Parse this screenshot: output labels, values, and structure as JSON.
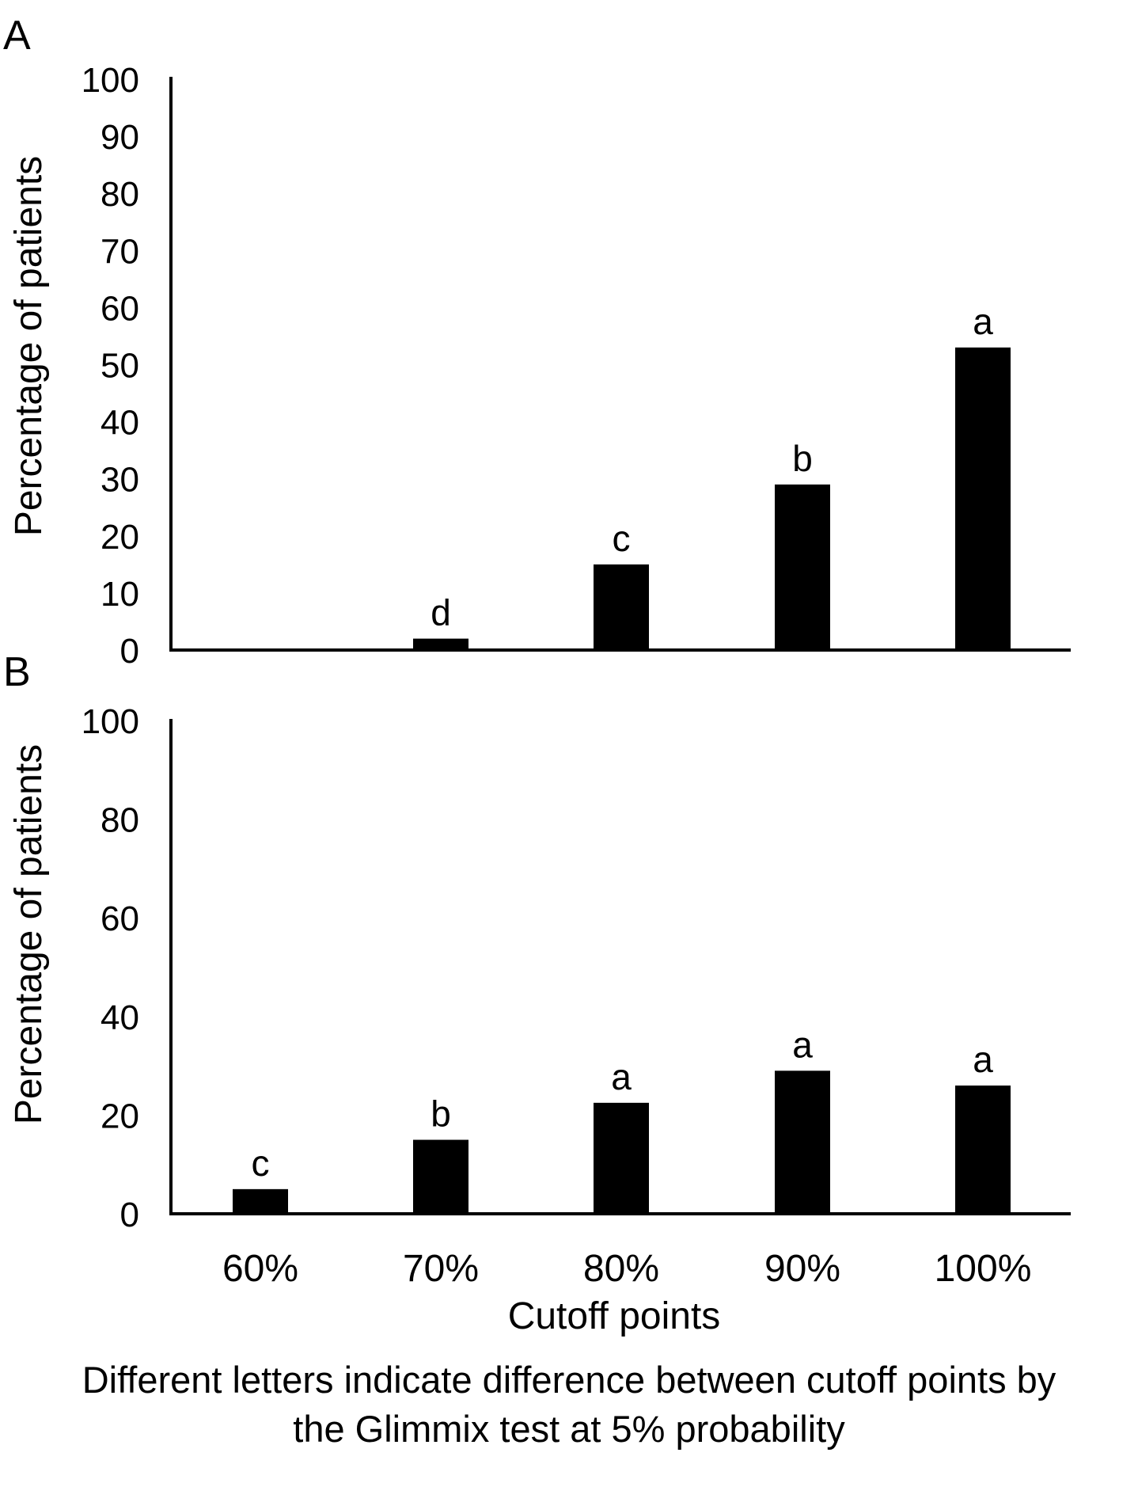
{
  "chart_data": [
    {
      "type": "bar",
      "panel_label": "A",
      "categories": [
        "60%",
        "70%",
        "80%",
        "90%",
        "100%"
      ],
      "values": [
        0,
        2,
        15,
        29,
        53
      ],
      "significance_letters": [
        "",
        "d",
        "c",
        "b",
        "a"
      ],
      "ylabel": "Percentage of patients",
      "xlabel": "",
      "ylim": [
        0,
        100
      ],
      "yticks": [
        0,
        10,
        20,
        30,
        40,
        50,
        60,
        70,
        80,
        90,
        100
      ],
      "grid": false,
      "bar_color": "#000000"
    },
    {
      "type": "bar",
      "panel_label": "B",
      "categories": [
        "60%",
        "70%",
        "80%",
        "90%",
        "100%"
      ],
      "values": [
        5,
        15,
        22.5,
        29,
        26
      ],
      "significance_letters": [
        "c",
        "b",
        "a",
        "a",
        "a"
      ],
      "ylabel": "Percentage of patients",
      "xlabel": "Cutoff points",
      "ylim": [
        0,
        100
      ],
      "yticks": [
        0,
        20,
        40,
        60,
        80,
        100
      ],
      "grid": false,
      "bar_color": "#000000"
    }
  ],
  "caption": {
    "line1": "Different letters indicate difference between cutoff points by",
    "line2": "the Glimmix test at 5% probability"
  }
}
